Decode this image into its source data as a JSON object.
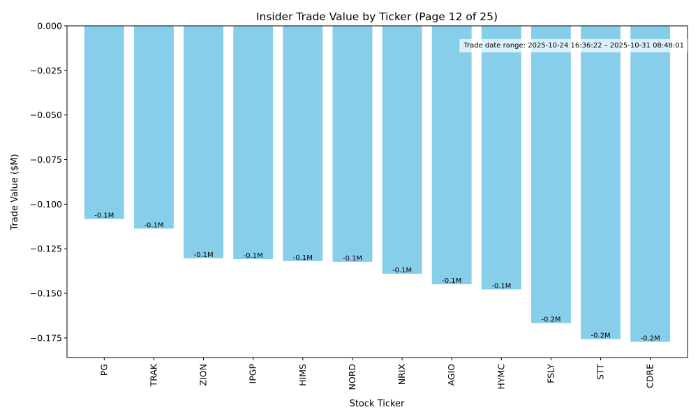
{
  "chart_data": {
    "type": "bar",
    "title": "Insider Trade Value by Ticker (Page 12 of 25)",
    "xlabel": "Stock Ticker",
    "ylabel": "Trade Value ($M)",
    "categories": [
      "PG",
      "TRAK",
      "ZION",
      "IPGP",
      "HIMS",
      "NORD",
      "NRIX",
      "AGIO",
      "HYMC",
      "FSLY",
      "STT",
      "CDRE"
    ],
    "values": [
      -0.1083,
      -0.1137,
      -0.1303,
      -0.1308,
      -0.1319,
      -0.1323,
      -0.139,
      -0.1449,
      -0.1478,
      -0.1667,
      -0.1757,
      -0.1772
    ],
    "data_labels": [
      "-0.1M",
      "-0.1M",
      "-0.1M",
      "-0.1M",
      "-0.1M",
      "-0.1M",
      "-0.1M",
      "-0.1M",
      "-0.1M",
      "-0.2M",
      "-0.2M",
      "-0.2M"
    ],
    "ylim": [
      -0.186,
      0.0
    ],
    "yticks": [
      0.0,
      -0.025,
      -0.05,
      -0.075,
      -0.1,
      -0.125,
      -0.15,
      -0.175
    ],
    "ytick_labels": [
      "0.000",
      "−0.025",
      "−0.050",
      "−0.075",
      "−0.100",
      "−0.125",
      "−0.150",
      "−0.175"
    ],
    "bar_color": "#87ceeb",
    "grid": false,
    "legend": "none",
    "annotation": "Trade date range: 2025-10-24 16:36:22 – 2025-10-31 08:48:01"
  }
}
